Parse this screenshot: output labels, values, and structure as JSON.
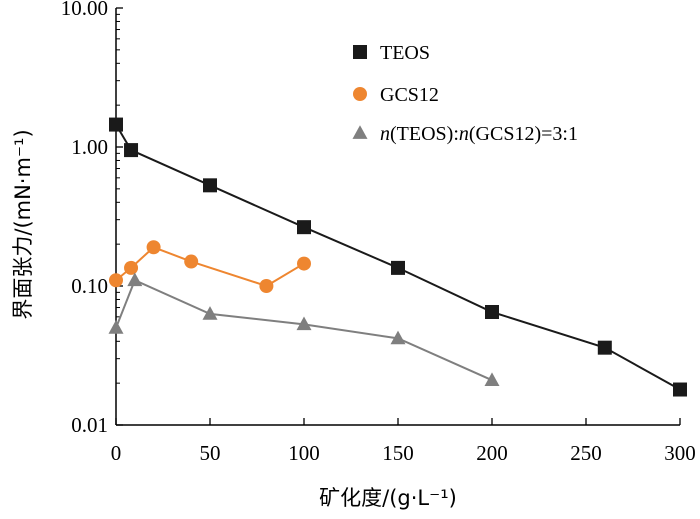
{
  "chart_data": {
    "type": "line",
    "title": "",
    "xlabel": "矿化度/(g·L⁻¹)",
    "ylabel": "界面张力/(mN·m⁻¹)",
    "xlim": [
      0,
      300
    ],
    "ylim": [
      0.01,
      10
    ],
    "yscale": "log",
    "grid": false,
    "legend_position": "top-right",
    "x_ticks": [
      "0",
      "50",
      "100",
      "150",
      "200",
      "250",
      "300"
    ],
    "y_ticks": [
      "0.01",
      "0.10",
      "1.00",
      "10.00"
    ],
    "series": [
      {
        "name": "TEOS",
        "marker": "square",
        "color": "#1a1a1a",
        "line_color": "#1a1a1a",
        "x": [
          0,
          8,
          50,
          100,
          150,
          200,
          260,
          300
        ],
        "y": [
          1.45,
          0.95,
          0.53,
          0.265,
          0.135,
          0.065,
          0.036,
          0.018
        ]
      },
      {
        "name": "GCS12",
        "marker": "circle",
        "color": "#ee8630",
        "line_color": "#ee8630",
        "x": [
          0,
          8,
          20,
          40,
          80,
          100
        ],
        "y": [
          0.11,
          0.135,
          0.19,
          0.15,
          0.1,
          0.145
        ]
      },
      {
        "name": "n(TEOS):n(GCS12)=3:1",
        "name_parts": [
          "n",
          "(TEOS):",
          "n",
          "(GCS12)=3:1"
        ],
        "marker": "triangle",
        "color": "#7f7f7f",
        "line_color": "#7f7f7f",
        "x": [
          0,
          10,
          50,
          100,
          150,
          200
        ],
        "y": [
          0.05,
          0.11,
          0.063,
          0.053,
          0.042,
          0.021
        ]
      }
    ]
  }
}
